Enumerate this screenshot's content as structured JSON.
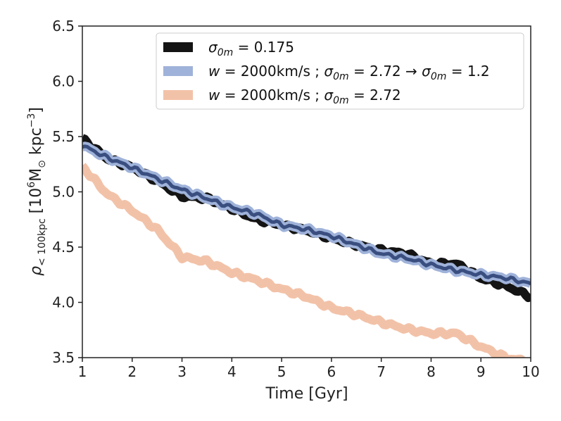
{
  "chart_data": {
    "type": "line",
    "title": "",
    "xlabel": "Time [Gyr]",
    "ylabel_parts": {
      "rho": "ρ",
      "sub": "< 100kpc",
      "bracket_open": "[10",
      "exp6": "6",
      "unit_mid": "M",
      "sun": "⊙",
      "unit_kpc": " kpc",
      "exp3": "−3",
      "bracket_close": "]"
    },
    "xlim": [
      1,
      10
    ],
    "ylim": [
      3.5,
      6.5
    ],
    "xticks": [
      "1",
      "2",
      "3",
      "4",
      "5",
      "6",
      "7",
      "8",
      "9",
      "10"
    ],
    "yticks": [
      "3.5",
      "4.0",
      "4.5",
      "5.0",
      "5.5",
      "6.0",
      "6.5"
    ],
    "x": [
      1.0,
      1.5,
      2.0,
      2.5,
      3.0,
      3.5,
      4.0,
      4.5,
      5.0,
      5.5,
      6.0,
      6.5,
      7.0,
      7.5,
      8.0,
      8.5,
      9.0,
      9.5,
      10.0
    ],
    "series": [
      {
        "name": "sigma_0m = 0.175",
        "legend": {
          "sym": "σ",
          "sub": "0m",
          "rest": " = 0.175"
        },
        "color": "#141414",
        "values": [
          5.48,
          5.3,
          5.22,
          5.1,
          4.96,
          4.94,
          4.85,
          4.75,
          4.7,
          4.65,
          4.58,
          4.52,
          4.47,
          4.44,
          4.35,
          4.35,
          4.22,
          4.15,
          4.05
        ]
      },
      {
        "name": "w = 2000km/s ; sigma_0m = 2.72 -> sigma_0m = 1.2",
        "legend": {
          "w": "w",
          "w_rest": " = 2000km/s ;  ",
          "sym": "σ",
          "sub": "0m",
          "mid": " = 2.72 → ",
          "sym2": "σ",
          "sub2": "0m",
          "rest": " = 1.2"
        },
        "color": "#9fb2d9",
        "values": [
          5.42,
          5.31,
          5.22,
          5.12,
          5.02,
          4.94,
          4.86,
          4.8,
          4.7,
          4.66,
          4.6,
          4.52,
          4.44,
          4.4,
          4.34,
          4.29,
          4.25,
          4.22,
          4.17
        ]
      },
      {
        "name": "w = 2000km/s ; sigma_0m = 2.72",
        "legend": {
          "w": "w",
          "w_rest": " = 2000km/s ;  ",
          "sym": "σ",
          "sub": "0m",
          "rest": " = 2.72"
        },
        "color": "#f2c2a8",
        "values": [
          5.23,
          4.98,
          4.83,
          4.66,
          4.41,
          4.37,
          4.27,
          4.2,
          4.12,
          4.05,
          3.95,
          3.89,
          3.82,
          3.76,
          3.72,
          3.72,
          3.6,
          3.5,
          3.46
        ]
      }
    ],
    "overlay_line": {
      "of_series": 1,
      "color": "#3a4f80"
    },
    "legend_position": "top-right",
    "grid": false
  }
}
